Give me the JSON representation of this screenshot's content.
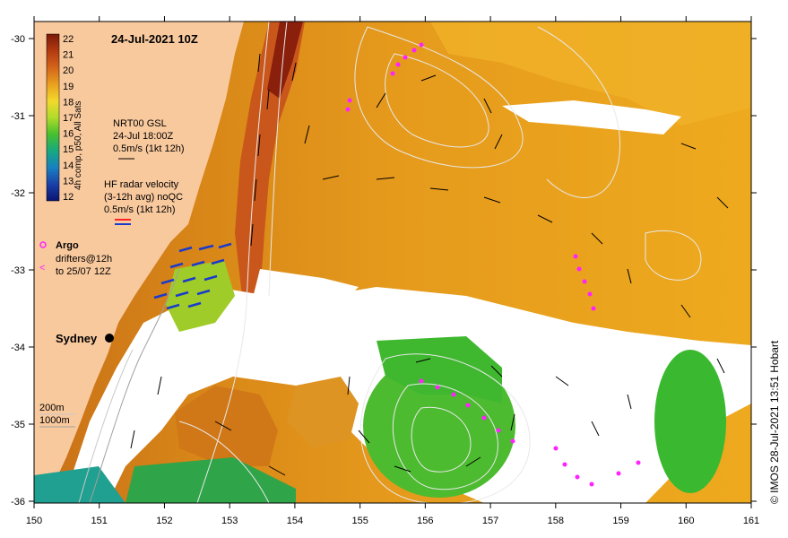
{
  "title": "24-Jul-2021 10Z",
  "credit": "© IMOS 28-Jul-2021 13:51 Hobart",
  "colorbar": {
    "label": "4h comp, p50, All Sats",
    "ticks": [
      "22",
      "21",
      "20",
      "19",
      "18",
      "17",
      "16",
      "15",
      "14",
      "13",
      "12"
    ],
    "colors": [
      "#7a1a0a",
      "#a8330f",
      "#c9561a",
      "#dd8a1c",
      "#e8b020",
      "#f2d52a",
      "#b8dc2a",
      "#6ecb2a",
      "#2fb24a",
      "#16a08c",
      "#1a72b8",
      "#1a3aa0",
      "#0a1470"
    ]
  },
  "legend": {
    "gsl": [
      "NRT00 GSL",
      "24-Jul 18:00Z",
      "0.5m/s (1kt 12h)"
    ],
    "hf": [
      "HF radar velocity",
      "(3-12h avg) noQC",
      "0.5m/s (1kt 12h)"
    ],
    "argo": "Argo",
    "drifters": [
      "drifters@12h",
      "to 25/07 12Z"
    ],
    "bathy": [
      "200m",
      "1000m"
    ]
  },
  "city": "Sydney",
  "x_ticks": [
    "150",
    "151",
    "152",
    "153",
    "154",
    "155",
    "156",
    "157",
    "158",
    "159",
    "160",
    "161"
  ],
  "y_ticks": [
    "-30",
    "-31",
    "-32",
    "-33",
    "-34",
    "-35",
    "-36"
  ],
  "colors": {
    "land": "#f9c99e",
    "cloud": "#ffffff",
    "drifter": "#ff22ff",
    "hf_arrow": "#1a3acc",
    "vector": "#000000",
    "contour": "#e8e8e8"
  }
}
